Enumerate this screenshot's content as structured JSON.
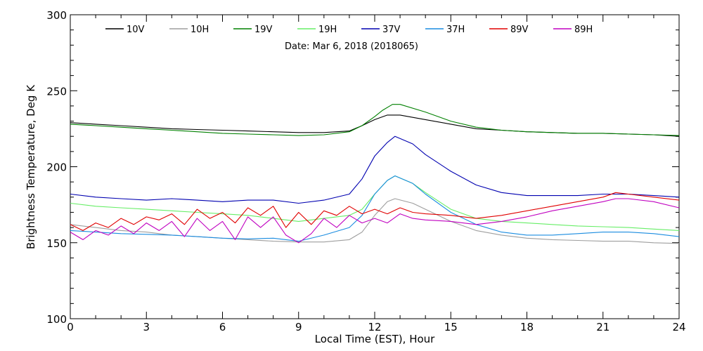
{
  "chart_data": {
    "type": "line",
    "subtitle": "Date: Mar  6, 2018 (2018065)",
    "xlabel": "Local Time (EST), Hour",
    "ylabel": "Brightness Temperature, Deg K",
    "xlim": [
      0,
      24
    ],
    "ylim": [
      100,
      300
    ],
    "xticks": [
      0,
      3,
      6,
      9,
      12,
      15,
      18,
      21,
      24
    ],
    "yticks": [
      100,
      150,
      200,
      250,
      300
    ],
    "grid": false,
    "legend_position": "top",
    "series": [
      {
        "name": "10V",
        "color": "#000000",
        "x": [
          0,
          1,
          2,
          3,
          4,
          5,
          6,
          7,
          8,
          9,
          10,
          11,
          11.5,
          12,
          12.5,
          13,
          14,
          15,
          16,
          17,
          18,
          19,
          20,
          21,
          22,
          23,
          24
        ],
        "y": [
          229,
          228,
          227,
          226,
          225,
          224.5,
          224,
          223.5,
          223,
          222.5,
          222.5,
          223.5,
          227,
          231,
          234,
          234,
          231,
          228,
          225,
          224,
          223,
          222.5,
          222,
          222,
          221.5,
          221,
          220
        ]
      },
      {
        "name": "10H",
        "color": "#9e9e9e",
        "x": [
          0,
          1,
          2,
          3,
          4,
          5,
          6,
          7,
          8,
          9,
          10,
          11,
          11.5,
          12,
          12.5,
          12.8,
          13.5,
          14,
          15,
          16,
          17,
          18,
          19,
          20,
          21,
          22,
          23,
          24
        ],
        "y": [
          162,
          160,
          158,
          157,
          155,
          154,
          153,
          152,
          151,
          150.5,
          150.5,
          152,
          157,
          168,
          177,
          179,
          176,
          172,
          164,
          158,
          155,
          153,
          152,
          151.5,
          151,
          151,
          150,
          149.5
        ]
      },
      {
        "name": "19V",
        "color": "#008000",
        "x": [
          0,
          1,
          2,
          3,
          4,
          5,
          6,
          7,
          8,
          9,
          10,
          11,
          11.5,
          12,
          12.3,
          12.7,
          13,
          14,
          15,
          16,
          17,
          18,
          19,
          20,
          21,
          22,
          23,
          24
        ],
        "y": [
          228,
          227,
          226,
          225,
          224,
          223,
          222,
          221.5,
          221,
          220.5,
          221,
          223,
          227,
          233,
          237,
          241,
          241,
          236,
          230,
          226,
          224,
          223,
          222.5,
          222,
          222,
          221.5,
          221,
          220.5
        ]
      },
      {
        "name": "19H",
        "color": "#66ee66",
        "x": [
          0,
          1,
          2,
          3,
          4,
          5,
          6,
          7,
          8,
          9,
          10,
          11,
          11.5,
          12,
          12.5,
          12.8,
          13.5,
          14,
          15,
          16,
          17,
          18,
          19,
          20,
          21,
          22,
          23,
          24
        ],
        "y": [
          176,
          174,
          173,
          172,
          171,
          170,
          169,
          168,
          166,
          164,
          166,
          168,
          172,
          182,
          191,
          194,
          189,
          183,
          172,
          166,
          164,
          163,
          162,
          161,
          160.5,
          160,
          159,
          158
        ]
      },
      {
        "name": "37V",
        "color": "#0000b0",
        "x": [
          0,
          1,
          2,
          3,
          4,
          5,
          6,
          7,
          8,
          9,
          10,
          11,
          11.5,
          12,
          12.5,
          12.8,
          13.5,
          14,
          15,
          16,
          17,
          18,
          19,
          20,
          21,
          22,
          23,
          24
        ],
        "y": [
          182,
          180,
          179,
          178,
          179,
          178,
          177,
          178,
          178,
          176,
          178,
          182,
          192,
          207,
          216,
          220,
          215,
          208,
          197,
          188,
          183,
          181,
          181,
          181,
          182,
          182,
          181,
          180
        ]
      },
      {
        "name": "37H",
        "color": "#1a8ce0",
        "x": [
          0,
          1,
          2,
          3,
          4,
          5,
          6,
          7,
          8,
          9,
          10,
          11,
          11.5,
          12,
          12.5,
          12.8,
          13.5,
          14,
          15,
          16,
          17,
          18,
          19,
          20,
          21,
          22,
          23,
          24
        ],
        "y": [
          158,
          157,
          156,
          155.5,
          155,
          154,
          153,
          152.5,
          153,
          151,
          155,
          160,
          168,
          182,
          191,
          194,
          189,
          182,
          170,
          162,
          157,
          155,
          155,
          156,
          157,
          157,
          156,
          154
        ]
      },
      {
        "name": "89V",
        "color": "#e00000",
        "x": [
          0,
          0.5,
          1,
          1.5,
          2,
          2.5,
          3,
          3.5,
          4,
          4.5,
          5,
          5.5,
          6,
          6.5,
          7,
          7.5,
          8,
          8.5,
          9,
          9.5,
          10,
          10.5,
          11,
          11.5,
          12,
          12.5,
          13,
          13.5,
          14,
          15,
          16,
          17,
          18,
          19,
          20,
          21,
          21.5,
          22,
          23,
          24
        ],
        "y": [
          162,
          158,
          163,
          160,
          166,
          162,
          167,
          165,
          169,
          162,
          172,
          166,
          170,
          163,
          173,
          168,
          174,
          160,
          170,
          162,
          171,
          168,
          174,
          169,
          172,
          169,
          173,
          170,
          169,
          168,
          166,
          168,
          171,
          174,
          177,
          180,
          183,
          182,
          180,
          178
        ]
      },
      {
        "name": "89H",
        "color": "#c000c0",
        "x": [
          0,
          0.5,
          1,
          1.5,
          2,
          2.5,
          3,
          3.5,
          4,
          4.5,
          5,
          5.5,
          6,
          6.5,
          7,
          7.5,
          8,
          8.5,
          9,
          9.5,
          10,
          10.5,
          11,
          11.5,
          12,
          12.5,
          13,
          13.5,
          14,
          15,
          16,
          17,
          18,
          19,
          20,
          21,
          21.5,
          22,
          23,
          24
        ],
        "y": [
          157,
          152,
          158,
          155,
          161,
          156,
          163,
          158,
          164,
          154,
          166,
          158,
          164,
          152,
          167,
          160,
          167,
          155,
          150,
          156,
          166,
          160,
          168,
          163,
          166,
          163,
          169,
          166,
          165,
          164,
          162,
          164,
          167,
          171,
          174,
          177,
          179,
          179,
          177,
          173
        ]
      }
    ]
  }
}
